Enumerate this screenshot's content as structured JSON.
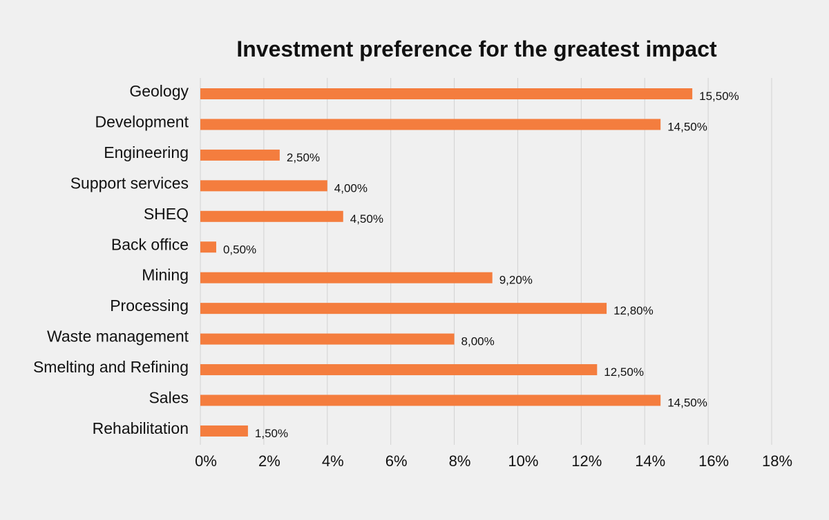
{
  "chart_data": {
    "type": "bar",
    "orientation": "horizontal",
    "title": "Investment preference for the greatest impact",
    "categories": [
      "Geology",
      "Development",
      "Engineering",
      "Support services",
      "SHEQ",
      "Back office",
      "Mining",
      "Processing",
      "Waste management",
      "Smelting and Refining",
      "Sales",
      "Rehabilitation"
    ],
    "values": [
      15.5,
      14.5,
      2.5,
      4.0,
      4.5,
      0.5,
      9.2,
      12.8,
      8.0,
      12.5,
      14.5,
      1.5
    ],
    "data_labels": [
      "15,50%",
      "14,50%",
      "2,50%",
      "4,00%",
      "4,50%",
      "0,50%",
      "9,20%",
      "12,80%",
      "8,00%",
      "12,50%",
      "14,50%",
      "1,50%"
    ],
    "x_ticks": [
      "0%",
      "2%",
      "4%",
      "6%",
      "8%",
      "10%",
      "12%",
      "14%",
      "16%",
      "18%"
    ],
    "xlim": [
      0,
      18
    ],
    "xlabel": "",
    "ylabel": "",
    "grid": true,
    "legend": "none",
    "bar_color": "#f47d3e",
    "grid_color": "#d2d2d2",
    "background_color": "#f0f0f0"
  }
}
